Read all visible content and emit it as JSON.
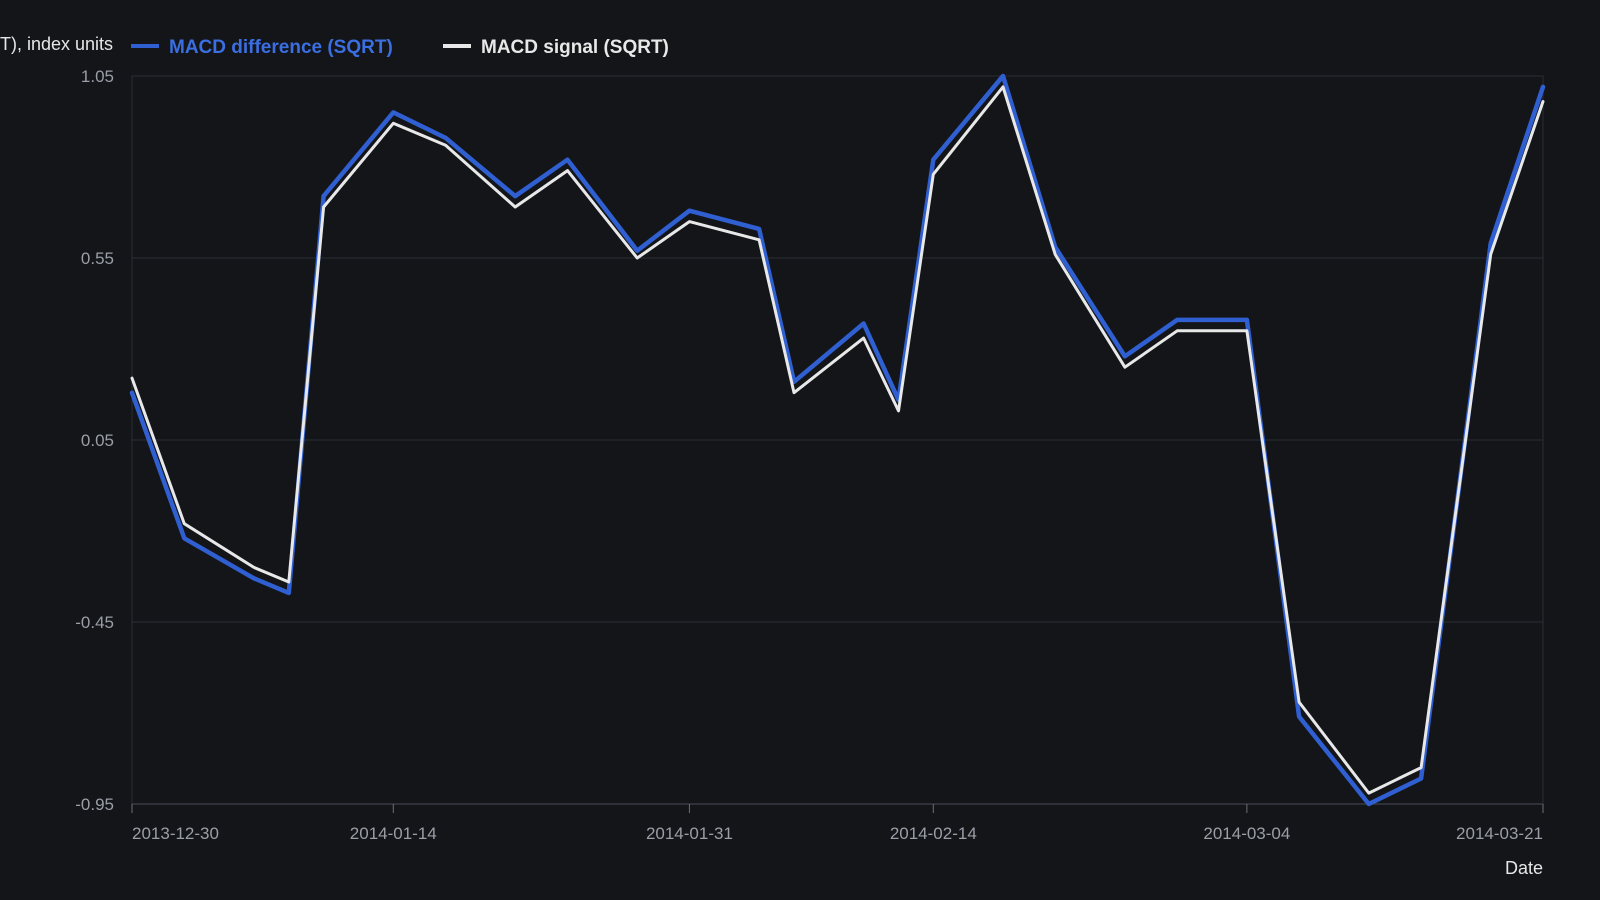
{
  "chart_data": {
    "type": "line",
    "ylabel": "MACD (SQRT), index units",
    "xlabel": "Date",
    "ylim": [
      -0.95,
      1.05
    ],
    "yticks": [
      "1.05",
      "0.55",
      "0.05",
      "-0.45",
      "-0.95"
    ],
    "xticks": [
      "2013-12-30",
      "2014-01-14",
      "2014-01-31",
      "2014-02-14",
      "2014-03-04",
      "2014-03-21"
    ],
    "grid": true,
    "legend_position": "top-left",
    "x": [
      "2013-12-30",
      "2014-01-02",
      "2014-01-06",
      "2014-01-08",
      "2014-01-10",
      "2014-01-14",
      "2014-01-17",
      "2014-01-21",
      "2014-01-24",
      "2014-01-28",
      "2014-01-31",
      "2014-02-04",
      "2014-02-06",
      "2014-02-10",
      "2014-02-12",
      "2014-02-14",
      "2014-02-18",
      "2014-02-21",
      "2014-02-25",
      "2014-02-28",
      "2014-03-04",
      "2014-03-07",
      "2014-03-11",
      "2014-03-14",
      "2014-03-18",
      "2014-03-21"
    ],
    "series": [
      {
        "name": "MACD difference (SQRT)",
        "color": "#2f5fd0",
        "values": [
          0.18,
          -0.22,
          -0.33,
          -0.37,
          0.72,
          0.95,
          0.88,
          0.72,
          0.82,
          0.57,
          0.68,
          0.63,
          0.21,
          0.37,
          0.16,
          0.82,
          1.05,
          0.58,
          0.28,
          0.38,
          0.38,
          -0.71,
          -0.95,
          -0.88,
          0.59,
          1.02
        ],
        "width": 4.5
      },
      {
        "name": "MACD signal (SQRT)",
        "color": "#e8e8e8",
        "values": [
          0.22,
          -0.18,
          -0.3,
          -0.34,
          0.69,
          0.92,
          0.86,
          0.69,
          0.79,
          0.55,
          0.65,
          0.6,
          0.18,
          0.33,
          0.13,
          0.78,
          1.02,
          0.56,
          0.25,
          0.35,
          0.35,
          -0.67,
          -0.92,
          -0.85,
          0.56,
          0.98
        ],
        "width": 3
      }
    ]
  }
}
